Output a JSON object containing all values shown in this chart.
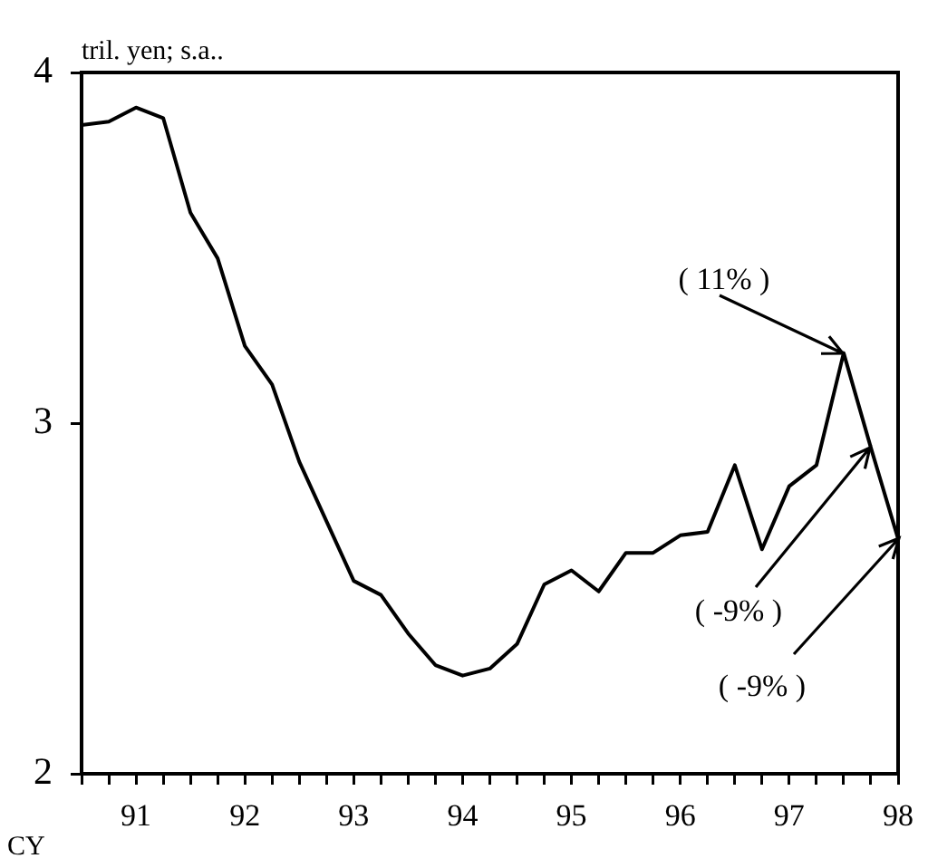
{
  "chart_data": {
    "type": "line",
    "ylabel": "tril. yen; s.a..",
    "x": [
      90.5,
      90.75,
      91,
      91.25,
      91.5,
      91.75,
      92,
      92.25,
      92.5,
      92.75,
      93,
      93.25,
      93.5,
      93.75,
      94,
      94.25,
      94.5,
      94.75,
      95,
      95.25,
      95.5,
      95.75,
      96,
      96.25,
      96.5,
      96.75,
      97,
      97.25,
      97.5,
      97.75,
      98
    ],
    "series": [
      {
        "color": "#000000",
        "values": [
          3.85,
          3.86,
          3.9,
          3.87,
          3.6,
          3.47,
          3.22,
          3.11,
          2.89,
          2.72,
          2.55,
          2.51,
          2.4,
          2.31,
          2.28,
          2.3,
          2.37,
          2.54,
          2.58,
          2.52,
          2.63,
          2.63,
          2.68,
          2.69,
          2.88,
          2.64,
          2.82,
          2.88,
          3.2,
          2.93,
          2.67
        ]
      }
    ],
    "xlim": [
      90.5,
      98
    ],
    "xticks": [
      {
        "value": 90.5,
        "label": null
      },
      {
        "value": 90.75,
        "label": null
      },
      91,
      {
        "value": 91.25,
        "label": null
      },
      {
        "value": 91.5,
        "label": null
      },
      {
        "value": 91.75,
        "label": null
      },
      92,
      {
        "value": 92.25,
        "label": null
      },
      {
        "value": 92.5,
        "label": null
      },
      {
        "value": 92.75,
        "label": null
      },
      93,
      {
        "value": 93.25,
        "label": null
      },
      {
        "value": 93.5,
        "label": null
      },
      {
        "value": 93.75,
        "label": null
      },
      94,
      {
        "value": 94.25,
        "label": null
      },
      {
        "value": 94.5,
        "label": null
      },
      {
        "value": 94.75,
        "label": null
      },
      95,
      {
        "value": 95.25,
        "label": null
      },
      {
        "value": 95.5,
        "label": null
      },
      {
        "value": 95.75,
        "label": null
      },
      96,
      {
        "value": 96.25,
        "label": null
      },
      {
        "value": 96.5,
        "label": null
      },
      {
        "value": 96.75,
        "label": null
      },
      97,
      {
        "value": 97.25,
        "label": null
      },
      {
        "value": 97.5,
        "label": null
      },
      {
        "value": 97.75,
        "label": null
      },
      98
    ],
    "ylim": [
      2,
      4
    ],
    "yticks": [
      2,
      3,
      4
    ],
    "grid": false,
    "legend": false,
    "marker": "none",
    "line_style": "solid",
    "annotations": [
      {
        "text": "( 11% )",
        "x": 97.5,
        "y": 3.2
      },
      {
        "text": "( -9% )",
        "x": 97.75,
        "y": 2.93
      },
      {
        "text": "( -9% )",
        "x": 98,
        "y": 2.67
      },
      "CY"
    ]
  }
}
